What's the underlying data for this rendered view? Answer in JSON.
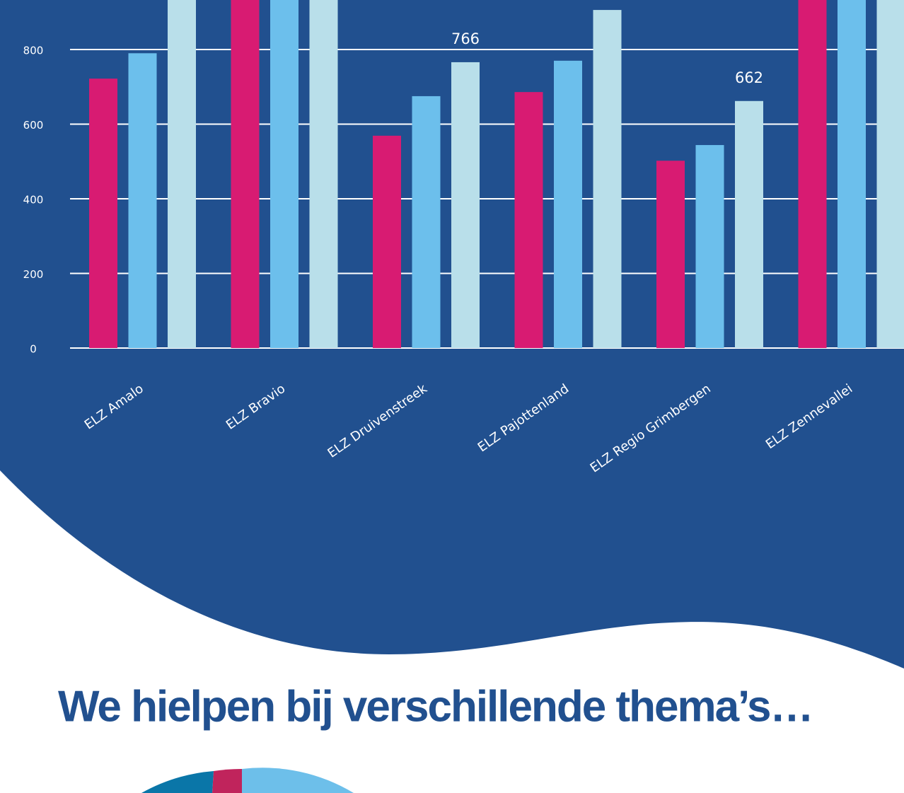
{
  "heading": "We hielpen bij verschillende thema’s…",
  "chart_data": {
    "type": "bar",
    "categories": [
      "ELZ Amalo",
      "ELZ Bravio",
      "ELZ Druivenstreek",
      "ELZ Pajottenland",
      "ELZ Regio Grimbergen",
      "ELZ Zennevallei"
    ],
    "series": [
      {
        "color": "#d81b72",
        "values": [
          722,
          980,
          569,
          686,
          502,
          1000
        ]
      },
      {
        "color": "#6cbfec",
        "values": [
          790,
          1000,
          675,
          770,
          544,
          1020
        ]
      },
      {
        "color": "#b9dfea",
        "values": [
          960,
          990,
          766,
          906,
          662,
          1010
        ],
        "value_labels": [
          null,
          null,
          "766",
          null,
          "662",
          null
        ]
      }
    ],
    "ylim": [
      0,
      1000
    ],
    "yticks": [
      0,
      200,
      400,
      600,
      800
    ],
    "grid": true
  }
}
